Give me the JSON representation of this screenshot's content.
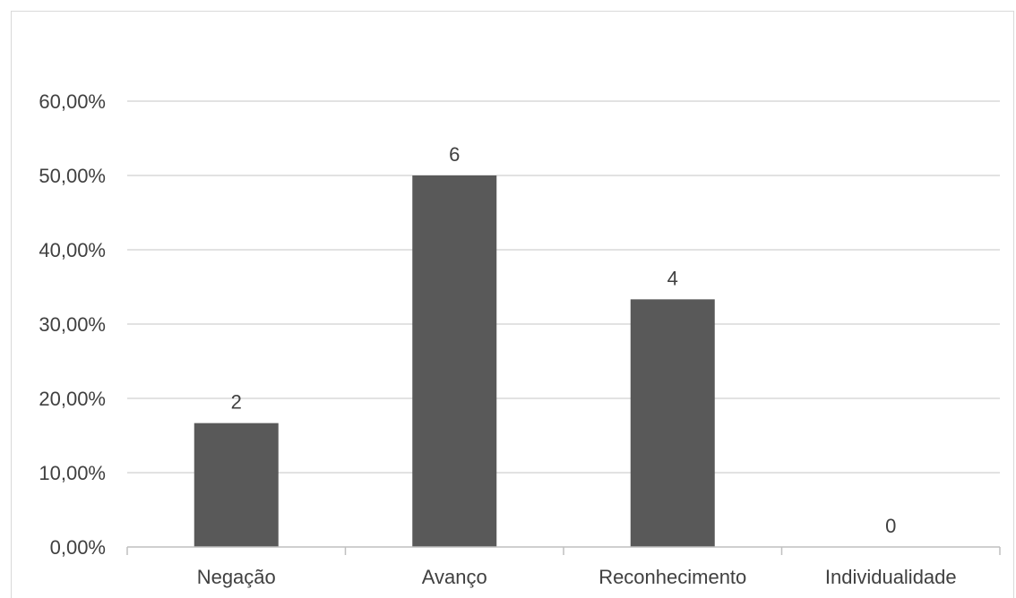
{
  "chart_data": {
    "type": "bar",
    "categories": [
      "Negação",
      "Avanço",
      "Reconhecimento",
      "Individualidade"
    ],
    "values": [
      16.67,
      50.0,
      33.33,
      0.0
    ],
    "data_labels": [
      "2",
      "6",
      "4",
      "0"
    ],
    "y_tick_labels": [
      "0,00%",
      "10,00%",
      "20,00%",
      "30,00%",
      "40,00%",
      "50,00%",
      "60,00%"
    ],
    "ylim": [
      0,
      60
    ],
    "y_unit": "percent",
    "grid": true,
    "legend": "none",
    "title": "",
    "xlabel": "",
    "ylabel": ""
  },
  "colors": {
    "bar": "#595959",
    "grid": "#d9d9d9",
    "axis": "#bfbfbf",
    "text": "#404040"
  }
}
